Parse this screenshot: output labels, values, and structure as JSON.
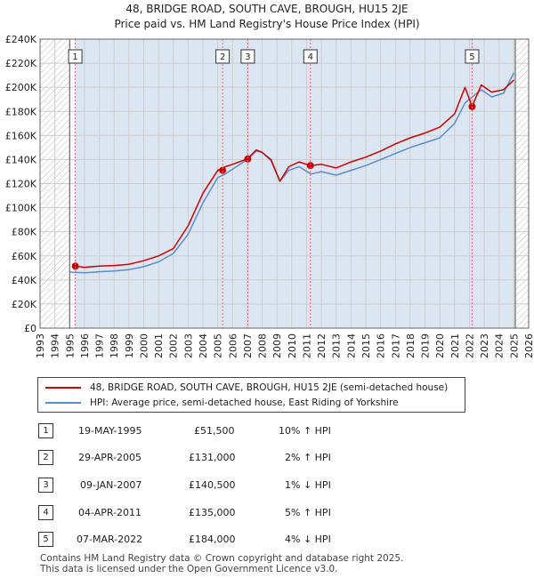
{
  "title_line1": "48, BRIDGE ROAD, SOUTH CAVE, BROUGH, HU15 2JE",
  "title_line2": "Price paid vs. HM Land Registry's House Price Index (HPI)",
  "colors": {
    "property": "#cc0000",
    "hpi": "#5b8ec9",
    "shade": "#dce6f2",
    "grid": "#cccccc",
    "marker_line": "#e06666"
  },
  "legend": {
    "property_label": "48, BRIDGE ROAD, SOUTH CAVE, BROUGH, HU15 2JE (semi-detached house)",
    "hpi_label": "HPI: Average price, semi-detached house, East Riding of Yorkshire"
  },
  "sales": [
    {
      "num": "1",
      "date": "19-MAY-1995",
      "price": "£51,500",
      "hpi": "10% ↑ HPI"
    },
    {
      "num": "2",
      "date": "29-APR-2005",
      "price": "£131,000",
      "hpi": "2% ↑ HPI"
    },
    {
      "num": "3",
      "date": "09-JAN-2007",
      "price": "£140,500",
      "hpi": "1% ↓ HPI"
    },
    {
      "num": "4",
      "date": "04-APR-2011",
      "price": "£135,000",
      "hpi": "5% ↑ HPI"
    },
    {
      "num": "5",
      "date": "07-MAR-2022",
      "price": "£184,000",
      "hpi": "4% ↓ HPI"
    }
  ],
  "footer": {
    "line1": "Contains HM Land Registry data © Crown copyright and database right 2025.",
    "line2": "This data is licensed under the Open Government Licence v3.0."
  },
  "chart_data": {
    "type": "line",
    "xlim": [
      1993,
      2026
    ],
    "ylim": [
      0,
      240000
    ],
    "x_ticks": [
      1993,
      1994,
      1995,
      1996,
      1997,
      1998,
      1999,
      2000,
      2001,
      2002,
      2003,
      2004,
      2005,
      2006,
      2007,
      2008,
      2009,
      2010,
      2011,
      2012,
      2013,
      2014,
      2015,
      2016,
      2017,
      2018,
      2019,
      2020,
      2021,
      2022,
      2023,
      2024,
      2025,
      2026
    ],
    "y_ticks": [
      0,
      20000,
      40000,
      60000,
      80000,
      100000,
      120000,
      140000,
      160000,
      180000,
      200000,
      220000,
      240000
    ],
    "y_tick_labels": [
      "£0",
      "£20K",
      "£40K",
      "£60K",
      "£80K",
      "£100K",
      "£120K",
      "£140K",
      "£160K",
      "£180K",
      "£200K",
      "£220K",
      "£240K"
    ],
    "grid": true,
    "hatched_before": 1995.0,
    "hatched_after": 2025.1,
    "sale_points": [
      {
        "label": "1",
        "x": 1995.38,
        "y": 51500
      },
      {
        "label": "2",
        "x": 2005.33,
        "y": 131000
      },
      {
        "label": "3",
        "x": 2007.03,
        "y": 140500
      },
      {
        "label": "4",
        "x": 2011.26,
        "y": 135000
      },
      {
        "label": "5",
        "x": 2022.18,
        "y": 184000
      }
    ],
    "series": [
      {
        "name": "48, BRIDGE ROAD, SOUTH CAVE, BROUGH, HU15 2JE (semi-detached house)",
        "points": [
          [
            1995.38,
            51500
          ],
          [
            1996,
            50500
          ],
          [
            1997,
            51500
          ],
          [
            1998,
            52000
          ],
          [
            1999,
            53000
          ],
          [
            2000,
            56000
          ],
          [
            2001,
            60000
          ],
          [
            2002,
            66000
          ],
          [
            2003,
            85000
          ],
          [
            2004,
            112000
          ],
          [
            2005,
            131000
          ],
          [
            2005.5,
            134000
          ],
          [
            2006,
            136000
          ],
          [
            2007,
            140500
          ],
          [
            2007.6,
            148000
          ],
          [
            2008,
            146000
          ],
          [
            2008.6,
            140000
          ],
          [
            2009.2,
            122000
          ],
          [
            2009.8,
            134000
          ],
          [
            2010.5,
            138000
          ],
          [
            2011.26,
            135000
          ],
          [
            2012,
            136000
          ],
          [
            2013,
            133000
          ],
          [
            2014,
            138000
          ],
          [
            2015,
            142000
          ],
          [
            2016,
            147000
          ],
          [
            2017,
            153000
          ],
          [
            2018,
            158000
          ],
          [
            2019,
            162000
          ],
          [
            2020,
            167000
          ],
          [
            2021,
            178000
          ],
          [
            2021.7,
            200000
          ],
          [
            2022.18,
            184000
          ],
          [
            2022.8,
            202000
          ],
          [
            2023.5,
            196000
          ],
          [
            2024.3,
            198000
          ],
          [
            2025.0,
            206000
          ]
        ]
      },
      {
        "name": "HPI: Average price, semi-detached house, East Riding of Yorkshire",
        "points": [
          [
            1995,
            46500
          ],
          [
            1996,
            46000
          ],
          [
            1997,
            46800
          ],
          [
            1998,
            47500
          ],
          [
            1999,
            48500
          ],
          [
            2000,
            51000
          ],
          [
            2001,
            55000
          ],
          [
            2002,
            62000
          ],
          [
            2003,
            78000
          ],
          [
            2004,
            104000
          ],
          [
            2005,
            125000
          ],
          [
            2005.5,
            128000
          ],
          [
            2006,
            132000
          ],
          [
            2007,
            140000
          ],
          [
            2007.6,
            147000
          ],
          [
            2008,
            146000
          ],
          [
            2008.6,
            139000
          ],
          [
            2009.2,
            122000
          ],
          [
            2009.8,
            131000
          ],
          [
            2010.5,
            134000
          ],
          [
            2011.3,
            128000
          ],
          [
            2012,
            130000
          ],
          [
            2013,
            127000
          ],
          [
            2014,
            131000
          ],
          [
            2015,
            135000
          ],
          [
            2016,
            140000
          ],
          [
            2017,
            145000
          ],
          [
            2018,
            150000
          ],
          [
            2019,
            154000
          ],
          [
            2020,
            158000
          ],
          [
            2021,
            170000
          ],
          [
            2021.7,
            187000
          ],
          [
            2022.3,
            193000
          ],
          [
            2022.8,
            198000
          ],
          [
            2023.5,
            192000
          ],
          [
            2024.3,
            195000
          ],
          [
            2025.0,
            212000
          ]
        ]
      }
    ]
  }
}
